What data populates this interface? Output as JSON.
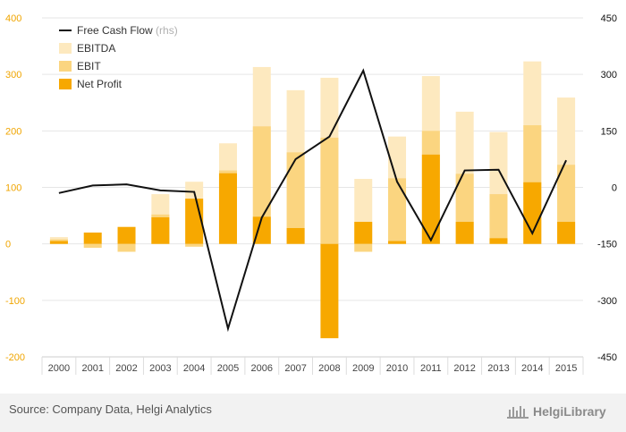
{
  "chart_data": {
    "type": "bar",
    "categories": [
      "2000",
      "2001",
      "2002",
      "2003",
      "2004",
      "2005",
      "2006",
      "2007",
      "2008",
      "2009",
      "2010",
      "2011",
      "2012",
      "2013",
      "2014",
      "2015"
    ],
    "series": [
      {
        "name": "EBITDA",
        "kind": "bar",
        "axis": "left",
        "color": "#fde9bf",
        "values": [
          12,
          0,
          0,
          88,
          110,
          178,
          313,
          272,
          294,
          115,
          190,
          297,
          234,
          198,
          323,
          259
        ]
      },
      {
        "name": "EBIT",
        "kind": "bar",
        "axis": "left",
        "color": "#fbd580",
        "values": [
          8,
          -7,
          -14,
          52,
          -5,
          130,
          208,
          162,
          188,
          -14,
          116,
          200,
          124,
          88,
          210,
          140
        ]
      },
      {
        "name": "Net Profit",
        "kind": "bar",
        "axis": "left",
        "color": "#f7a800",
        "values": [
          5,
          20,
          30,
          47,
          80,
          125,
          48,
          28,
          -167,
          39,
          5,
          158,
          39,
          10,
          109,
          39
        ]
      },
      {
        "name": "Free Cash Flow",
        "name_suffix": "(rhs)",
        "kind": "line",
        "axis": "right",
        "color": "#111111",
        "values": [
          -15,
          5,
          8,
          -8,
          -12,
          -375,
          -80,
          75,
          135,
          310,
          15,
          -140,
          45,
          47,
          -122,
          72
        ]
      }
    ],
    "ylim": [
      -200,
      400
    ],
    "yticks": [
      -200,
      -100,
      0,
      100,
      200,
      300,
      400
    ],
    "y2lim": [
      -450,
      450
    ],
    "y2ticks": [
      -450,
      -300,
      -150,
      0,
      150,
      300,
      450
    ],
    "grid": true,
    "legend_position": "top-left",
    "title": "",
    "xlabel": "",
    "ylabel": "",
    "colors": {
      "left_axis": "#f0a500",
      "right_axis": "#111111",
      "grid": "#e6e6e6"
    }
  },
  "footer": {
    "source": "Source: Company Data, Helgi Analytics",
    "logo_text": "HelgiLibrary"
  }
}
